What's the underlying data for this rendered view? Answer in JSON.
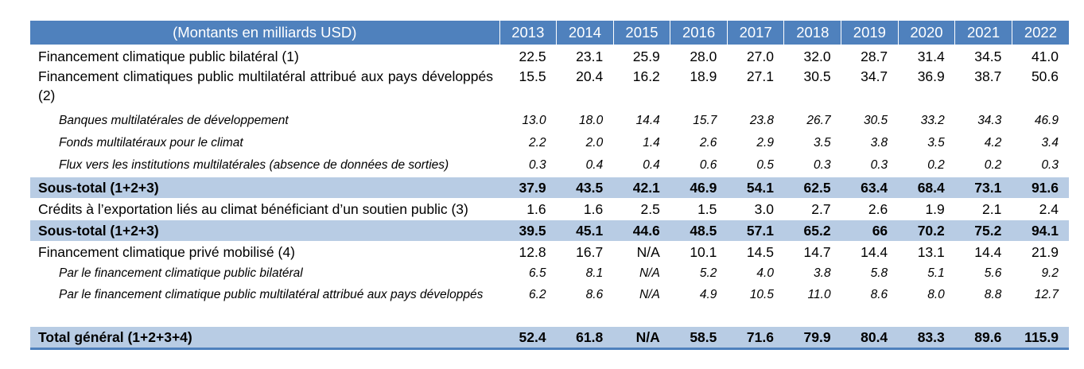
{
  "header": {
    "label": "(Montants en milliards USD)",
    "years": [
      "2013",
      "2014",
      "2015",
      "2016",
      "2017",
      "2018",
      "2019",
      "2020",
      "2021",
      "2022"
    ]
  },
  "rows": [
    {
      "label": "Financement climatique public bilatéral (1)",
      "values": [
        "22.5",
        "23.1",
        "25.9",
        "28.0",
        "27.0",
        "32.0",
        "28.7",
        "31.4",
        "34.5",
        "41.0"
      ]
    },
    {
      "label": "Financement climatiques public multilatéral attribué aux pays développés (2)",
      "values": [
        "15.5",
        "20.4",
        "16.2",
        "18.9",
        "27.1",
        "30.5",
        "34.7",
        "36.9",
        "38.7",
        "50.6"
      ]
    },
    {
      "label": "Banques multilatérales de développement",
      "values": [
        "13.0",
        "18.0",
        "14.4",
        "15.7",
        "23.8",
        "26.7",
        "30.5",
        "33.2",
        "34.3",
        "46.9"
      ]
    },
    {
      "label": "Fonds multilatéraux pour le climat",
      "values": [
        "2.2",
        "2.0",
        "1.4",
        "2.6",
        "2.9",
        "3.5",
        "3.8",
        "3.5",
        "4.2",
        "3.4"
      ]
    },
    {
      "label": "Flux vers les institutions multilatérales (absence de données de sorties)",
      "values": [
        "0.3",
        "0.4",
        "0.4",
        "0.6",
        "0.5",
        "0.3",
        "0.3",
        "0.2",
        "0.2",
        "0.3"
      ]
    },
    {
      "label": "Sous-total (1+2+3)",
      "values": [
        "37.9",
        "43.5",
        "42.1",
        "46.9",
        "54.1",
        "62.5",
        "63.4",
        "68.4",
        "73.1",
        "91.6"
      ]
    },
    {
      "label": "Crédits à l’exportation liés au climat bénéficiant d’un soutien public (3)",
      "values": [
        "1.6",
        "1.6",
        "2.5",
        "1.5",
        "3.0",
        "2.7",
        "2.6",
        "1.9",
        "2.1",
        "2.4"
      ]
    },
    {
      "label": "Sous-total (1+2+3)",
      "values": [
        "39.5",
        "45.1",
        "44.6",
        "48.5",
        "57.1",
        "65.2",
        "66",
        "70.2",
        "75.2",
        "94.1"
      ]
    },
    {
      "label": "Financement climatique privé mobilisé (4)",
      "values": [
        "12.8",
        "16.7",
        "N/A",
        "10.1",
        "14.5",
        "14.7",
        "14.4",
        "13.1",
        "14.4",
        "21.9"
      ]
    },
    {
      "label": "Par le financement climatique public bilatéral",
      "values": [
        "6.5",
        "8.1",
        "N/A",
        "5.2",
        "4.0",
        "3.8",
        "5.8",
        "5.1",
        "5.6",
        "9.2"
      ]
    },
    {
      "label": "Par le financement climatique public multilatéral attribué aux pays développés",
      "values": [
        "6.2",
        "8.6",
        "N/A",
        "4.9",
        "10.5",
        "11.0",
        "8.6",
        "8.0",
        "8.8",
        "12.7"
      ]
    },
    {
      "label": "Total général (1+2+3+4)",
      "values": [
        "52.4",
        "61.8",
        "N/A",
        "58.5",
        "71.6",
        "79.9",
        "80.4",
        "83.3",
        "89.6",
        "115.9"
      ]
    }
  ],
  "colors": {
    "header_bg": "#4f81bd",
    "total_bg": "#b8cce4"
  }
}
